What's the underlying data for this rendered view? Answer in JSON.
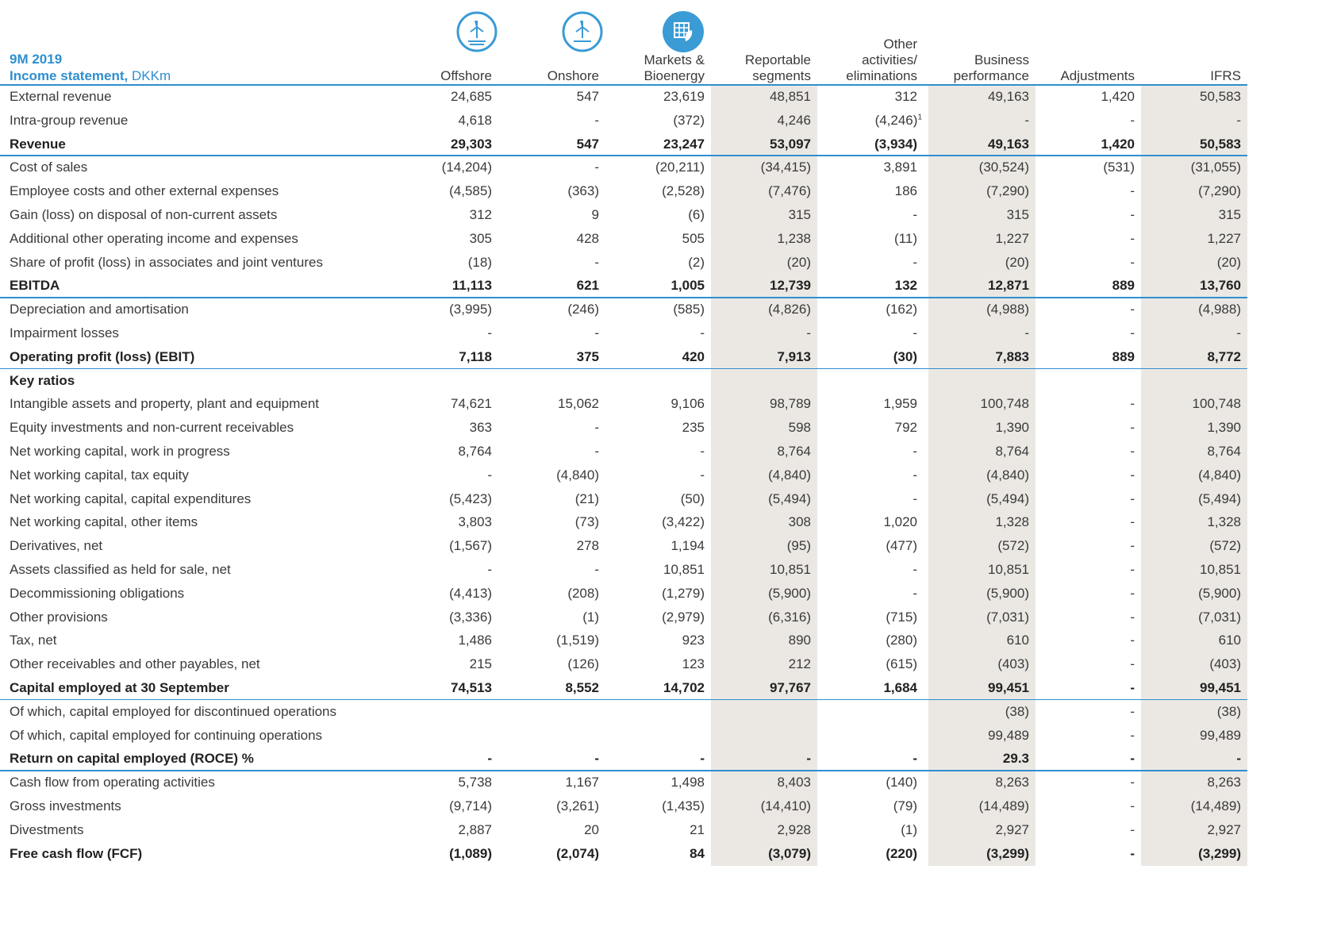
{
  "header": {
    "period": "9M 2019",
    "title": "Income statement,",
    "unit": "DKKm",
    "columns": [
      "Offshore",
      "Onshore",
      "Markets &\nBioenergy",
      "Reportable\nsegments",
      "Other\nactivities/\neliminations",
      "Business\nperformance",
      "Adjustments",
      "IFRS"
    ]
  },
  "table": {
    "rows": [
      {
        "label": "External revenue",
        "values": [
          "24,685",
          "547",
          "23,619",
          "48,851",
          "312",
          "49,163",
          "1,420",
          "50,583"
        ]
      },
      {
        "label": "Intra-group revenue",
        "values": [
          "4,618",
          "-",
          "(372)",
          "4,246",
          {
            "text": "(4,246)",
            "note": "1"
          },
          "-",
          "-",
          "-"
        ]
      },
      {
        "label": "Revenue",
        "bold": true,
        "rule": true,
        "values": [
          "29,303",
          "547",
          "23,247",
          "53,097",
          "(3,934)",
          "49,163",
          "1,420",
          "50,583"
        ]
      },
      {
        "label": "Cost of sales",
        "values": [
          "(14,204)",
          "-",
          "(20,211)",
          "(34,415)",
          "3,891",
          "(30,524)",
          "(531)",
          "(31,055)"
        ]
      },
      {
        "label": "Employee costs and other external expenses",
        "values": [
          "(4,585)",
          "(363)",
          "(2,528)",
          "(7,476)",
          "186",
          "(7,290)",
          "-",
          "(7,290)"
        ]
      },
      {
        "label": "Gain (loss) on disposal of non-current assets",
        "values": [
          "312",
          "9",
          "(6)",
          "315",
          "-",
          "315",
          "-",
          "315"
        ]
      },
      {
        "label": "Additional other operating income and expenses",
        "values": [
          "305",
          "428",
          "505",
          "1,238",
          "(11)",
          "1,227",
          "-",
          "1,227"
        ]
      },
      {
        "label": "Share of profit (loss) in associates and joint ventures",
        "values": [
          "(18)",
          "-",
          "(2)",
          "(20)",
          "-",
          "(20)",
          "-",
          "(20)"
        ]
      },
      {
        "label": "EBITDA",
        "bold": true,
        "rule": true,
        "values": [
          "11,113",
          "621",
          "1,005",
          "12,739",
          "132",
          "12,871",
          "889",
          "13,760"
        ]
      },
      {
        "label": "Depreciation and amortisation",
        "values": [
          "(3,995)",
          "(246)",
          "(585)",
          "(4,826)",
          "(162)",
          "(4,988)",
          "-",
          "(4,988)"
        ]
      },
      {
        "label": "Impairment losses",
        "values": [
          "-",
          "-",
          "-",
          "-",
          "-",
          "-",
          "-",
          "-"
        ]
      },
      {
        "label": "Operating profit (loss) (EBIT)",
        "bold": true,
        "rule": true,
        "values": [
          "7,118",
          "375",
          "420",
          "7,913",
          "(30)",
          "7,883",
          "889",
          "8,772"
        ]
      },
      {
        "label": "Key ratios",
        "bold": true
      },
      {
        "label": "Intangible assets and property, plant and equipment",
        "values": [
          "74,621",
          "15,062",
          "9,106",
          "98,789",
          "1,959",
          "100,748",
          "-",
          "100,748"
        ]
      },
      {
        "label": "Equity investments and non-current receivables",
        "values": [
          "363",
          "-",
          "235",
          "598",
          "792",
          "1,390",
          "-",
          "1,390"
        ]
      },
      {
        "label": "Net working capital, work in progress",
        "values": [
          "8,764",
          "-",
          "-",
          "8,764",
          "-",
          "8,764",
          "-",
          "8,764"
        ]
      },
      {
        "label": "Net working capital, tax equity",
        "values": [
          "-",
          "(4,840)",
          "-",
          "(4,840)",
          "-",
          "(4,840)",
          "-",
          "(4,840)"
        ]
      },
      {
        "label": "Net working capital, capital expenditures",
        "values": [
          "(5,423)",
          "(21)",
          "(50)",
          "(5,494)",
          "-",
          "(5,494)",
          "-",
          "(5,494)"
        ]
      },
      {
        "label": "Net working capital, other items",
        "values": [
          "3,803",
          "(73)",
          "(3,422)",
          "308",
          "1,020",
          "1,328",
          "-",
          "1,328"
        ]
      },
      {
        "label": "Derivatives, net",
        "values": [
          "(1,567)",
          "278",
          "1,194",
          "(95)",
          "(477)",
          "(572)",
          "-",
          "(572)"
        ]
      },
      {
        "label": "Assets classified as held for sale, net",
        "values": [
          "-",
          "-",
          "10,851",
          "10,851",
          "-",
          "10,851",
          "-",
          "10,851"
        ]
      },
      {
        "label": "Decommissioning obligations",
        "values": [
          "(4,413)",
          "(208)",
          "(1,279)",
          "(5,900)",
          "-",
          "(5,900)",
          "-",
          "(5,900)"
        ]
      },
      {
        "label": "Other provisions",
        "values": [
          "(3,336)",
          "(1)",
          "(2,979)",
          "(6,316)",
          "(715)",
          "(7,031)",
          "-",
          "(7,031)"
        ]
      },
      {
        "label": "Tax, net",
        "values": [
          "1,486",
          "(1,519)",
          "923",
          "890",
          "(280)",
          "610",
          "-",
          "610"
        ]
      },
      {
        "label": "Other receivables and other payables, net",
        "values": [
          "215",
          "(126)",
          "123",
          "212",
          "(615)",
          "(403)",
          "-",
          "(403)"
        ]
      },
      {
        "label": "Capital employed at 30 September",
        "bold": true,
        "rule": true,
        "values": [
          "74,513",
          "8,552",
          "14,702",
          "97,767",
          "1,684",
          "99,451",
          "-",
          "99,451"
        ]
      },
      {
        "label": "Of which, capital employed for discontinued operations",
        "values": [
          null,
          null,
          null,
          null,
          null,
          "(38)",
          "-",
          "(38)"
        ]
      },
      {
        "label": "Of which, capital employed for continuing operations",
        "values": [
          null,
          null,
          null,
          null,
          null,
          "99,489",
          "-",
          "99,489"
        ]
      },
      {
        "label": "Return on capital employed (ROCE) %",
        "bold": true,
        "rule": true,
        "values": [
          "-",
          "-",
          "-",
          "-",
          "-",
          "29.3",
          "-",
          "-"
        ]
      },
      {
        "label": "Cash flow from operating activities",
        "values": [
          "5,738",
          "1,167",
          "1,498",
          "8,403",
          "(140)",
          "8,263",
          "-",
          "8,263"
        ]
      },
      {
        "label": "Gross investments",
        "values": [
          "(9,714)",
          "(3,261)",
          "(1,435)",
          "(14,410)",
          "(79)",
          "(14,489)",
          "-",
          "(14,489)"
        ]
      },
      {
        "label": "Divestments",
        "values": [
          "2,887",
          "20",
          "21",
          "2,928",
          "(1)",
          "2,927",
          "-",
          "2,927"
        ]
      },
      {
        "label": "Free cash flow (FCF)",
        "bold": true,
        "values": [
          "(1,089)",
          "(2,074)",
          "84",
          "(3,079)",
          "(220)",
          "(3,299)",
          "-",
          "(3,299)"
        ]
      }
    ]
  }
}
